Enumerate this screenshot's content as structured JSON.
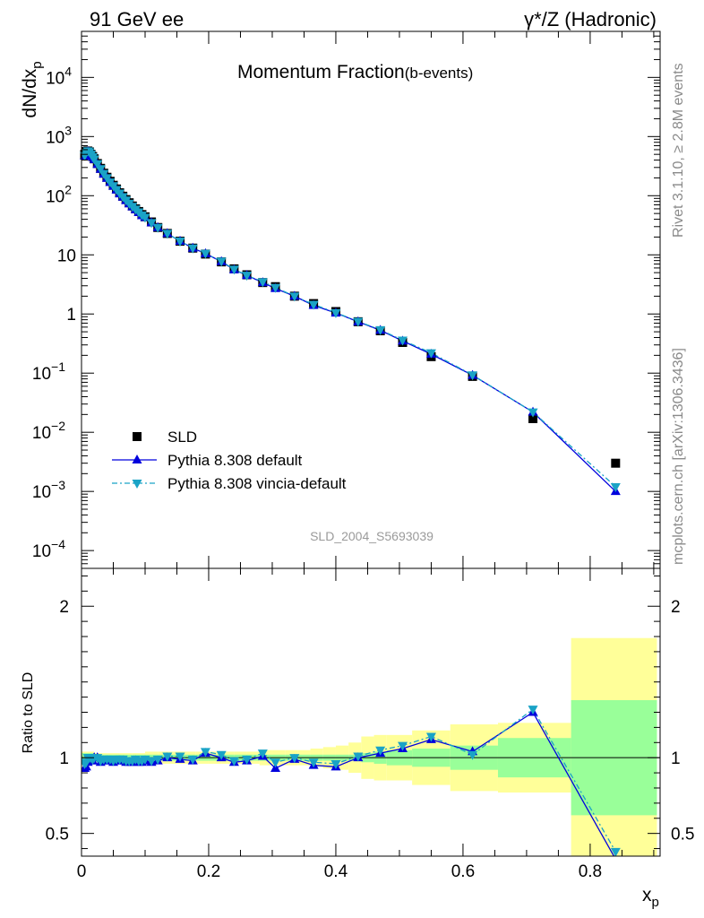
{
  "header": {
    "left": "91 GeV ee",
    "right": "γ*/Z (Hadronic)"
  },
  "side_text": {
    "rivet": "Rivet 3.1.10, ≥ 2.8M events",
    "mcplots": "mcplots.cern.ch [arXiv:1306.3436]"
  },
  "colors": {
    "data": "#000000",
    "pythia_default": "#0000dd",
    "pythia_vincia": "#1aa3c6",
    "band_inner": "#99ff99",
    "band_outer": "#ffff99"
  },
  "chart_data": [
    {
      "type": "scatter",
      "panel": "main",
      "title": "Momentum Fraction",
      "title_sub": "(b-events)",
      "watermark": "SLD_2004_S5693039",
      "ylabel": "dN/dx",
      "ylabel_sub": "p",
      "yscale": "log",
      "xlim": [
        0,
        0.91
      ],
      "ylim": [
        5e-05,
        60000
      ],
      "yticks": [
        {
          "v": 0.0001,
          "base": "10",
          "exp": "−4"
        },
        {
          "v": 0.001,
          "base": "10",
          "exp": "−3"
        },
        {
          "v": 0.01,
          "base": "10",
          "exp": "−2"
        },
        {
          "v": 0.1,
          "base": "10",
          "exp": "−1"
        },
        {
          "v": 1,
          "base": "1",
          "exp": ""
        },
        {
          "v": 10,
          "base": "10",
          "exp": ""
        },
        {
          "v": 100,
          "base": "10",
          "exp": "2"
        },
        {
          "v": 1000,
          "base": "10",
          "exp": "3"
        },
        {
          "v": 10000,
          "base": "10",
          "exp": "4"
        }
      ],
      "legend_position": "bottom-left",
      "x": [
        0.005,
        0.0075,
        0.01,
        0.0125,
        0.015,
        0.0175,
        0.02,
        0.025,
        0.03,
        0.035,
        0.04,
        0.045,
        0.05,
        0.055,
        0.06,
        0.065,
        0.07,
        0.075,
        0.08,
        0.085,
        0.09,
        0.095,
        0.1,
        0.11,
        0.12,
        0.135,
        0.155,
        0.175,
        0.195,
        0.22,
        0.24,
        0.26,
        0.285,
        0.305,
        0.335,
        0.365,
        0.4,
        0.435,
        0.47,
        0.505,
        0.55,
        0.615,
        0.71,
        0.84
      ],
      "series": [
        {
          "name": "SLD",
          "marker": "square",
          "values": [
            500,
            560,
            570,
            550,
            500,
            460,
            420,
            350,
            290,
            240,
            205,
            175,
            150,
            130,
            112,
            98,
            86,
            76,
            67,
            60,
            54,
            48,
            44,
            36,
            29,
            23,
            17,
            13,
            10.3,
            7.6,
            5.8,
            4.6,
            3.4,
            2.9,
            2.0,
            1.5,
            1.1,
            0.74,
            0.52,
            0.33,
            0.19,
            0.088,
            0.017,
            0.003
          ]
        },
        {
          "name": "Pythia 8.308 default",
          "marker": "triangle-up",
          "values": [
            470,
            530,
            555,
            545,
            490,
            450,
            410,
            340,
            280,
            232,
            198,
            168,
            145,
            125,
            108,
            95,
            83,
            73,
            65,
            58,
            52,
            46,
            43,
            35,
            29,
            23,
            17,
            13,
            10.5,
            7.7,
            5.6,
            4.5,
            3.4,
            2.7,
            2.0,
            1.4,
            1.04,
            0.74,
            0.53,
            0.35,
            0.21,
            0.092,
            0.022,
            0.001
          ]
        },
        {
          "name": "Pythia 8.308 vincia-default",
          "marker": "triangle-down",
          "values": [
            480,
            540,
            570,
            550,
            500,
            455,
            415,
            345,
            285,
            236,
            200,
            170,
            147,
            127,
            110,
            96,
            84,
            74,
            66,
            59,
            53,
            47,
            43,
            35,
            29,
            23,
            17,
            13,
            10.6,
            7.8,
            5.7,
            4.5,
            3.5,
            2.8,
            2.0,
            1.45,
            1.05,
            0.75,
            0.54,
            0.36,
            0.22,
            0.093,
            0.022,
            0.0012
          ]
        }
      ]
    },
    {
      "type": "line",
      "panel": "ratio",
      "ylabel": "Ratio to SLD",
      "xlabel": "x",
      "xlabel_sub": "p",
      "xlim": [
        0,
        0.91
      ],
      "ylim": [
        0.35,
        2.25
      ],
      "yticks": [
        0.5,
        1,
        2
      ],
      "xticks": [
        0,
        0.2,
        0.4,
        0.6,
        0.8
      ],
      "reference_line": 1,
      "bands": {
        "edges": [
          0,
          0.02,
          0.04,
          0.06,
          0.08,
          0.1,
          0.12,
          0.14,
          0.16,
          0.18,
          0.2,
          0.22,
          0.24,
          0.26,
          0.28,
          0.3,
          0.32,
          0.34,
          0.36,
          0.38,
          0.4,
          0.42,
          0.44,
          0.46,
          0.48,
          0.52,
          0.58,
          0.655,
          0.77,
          0.905
        ],
        "inner": [
          0.03,
          0.02,
          0.02,
          0.02,
          0.02,
          0.02,
          0.02,
          0.02,
          0.02,
          0.02,
          0.02,
          0.02,
          0.02,
          0.02,
          0.02,
          0.02,
          0.02,
          0.02,
          0.02,
          0.02,
          0.02,
          0.02,
          0.03,
          0.04,
          0.05,
          0.06,
          0.08,
          0.13,
          0.38,
          0.93
        ],
        "outer": [
          0.04,
          0.03,
          0.03,
          0.03,
          0.03,
          0.04,
          0.04,
          0.04,
          0.04,
          0.04,
          0.04,
          0.04,
          0.04,
          0.04,
          0.05,
          0.05,
          0.05,
          0.05,
          0.06,
          0.07,
          0.08,
          0.1,
          0.14,
          0.15,
          0.15,
          0.18,
          0.22,
          0.23,
          0.79,
          1.28
        ]
      },
      "x": [
        0.005,
        0.0075,
        0.01,
        0.0125,
        0.015,
        0.0175,
        0.02,
        0.025,
        0.03,
        0.035,
        0.04,
        0.045,
        0.05,
        0.055,
        0.06,
        0.065,
        0.07,
        0.075,
        0.08,
        0.085,
        0.09,
        0.095,
        0.1,
        0.11,
        0.12,
        0.135,
        0.155,
        0.175,
        0.195,
        0.22,
        0.24,
        0.26,
        0.285,
        0.305,
        0.335,
        0.365,
        0.4,
        0.435,
        0.47,
        0.505,
        0.55,
        0.615,
        0.71,
        0.84
      ],
      "series": [
        {
          "name": "Pythia 8.308 default",
          "values": [
            0.93,
            0.94,
            0.97,
            0.99,
            0.98,
            0.98,
            1.0,
            1.0,
            0.97,
            0.98,
            0.98,
            0.98,
            0.97,
            0.98,
            0.98,
            0.98,
            0.97,
            0.97,
            0.97,
            0.98,
            0.97,
            0.97,
            0.98,
            0.97,
            0.98,
            1.0,
            0.99,
            0.98,
            1.03,
            1.0,
            0.97,
            0.98,
            1.01,
            0.93,
            0.99,
            0.95,
            0.94,
            1.0,
            1.03,
            1.06,
            1.12,
            1.04,
            1.3,
            0.33
          ]
        },
        {
          "name": "Pythia 8.308 vincia-default",
          "values": [
            0.96,
            0.97,
            1.0,
            1.0,
            1.0,
            0.99,
            1.0,
            1.0,
            0.98,
            0.99,
            0.99,
            0.99,
            0.98,
            0.99,
            0.99,
            0.99,
            0.98,
            0.98,
            0.98,
            0.99,
            0.98,
            0.98,
            0.99,
            0.98,
            0.99,
            1.01,
            1.01,
            0.99,
            1.04,
            1.02,
            0.98,
            0.99,
            1.03,
            0.97,
            1.0,
            0.97,
            0.96,
            1.01,
            1.05,
            1.08,
            1.14,
            1.02,
            1.32,
            0.38
          ]
        }
      ]
    }
  ]
}
